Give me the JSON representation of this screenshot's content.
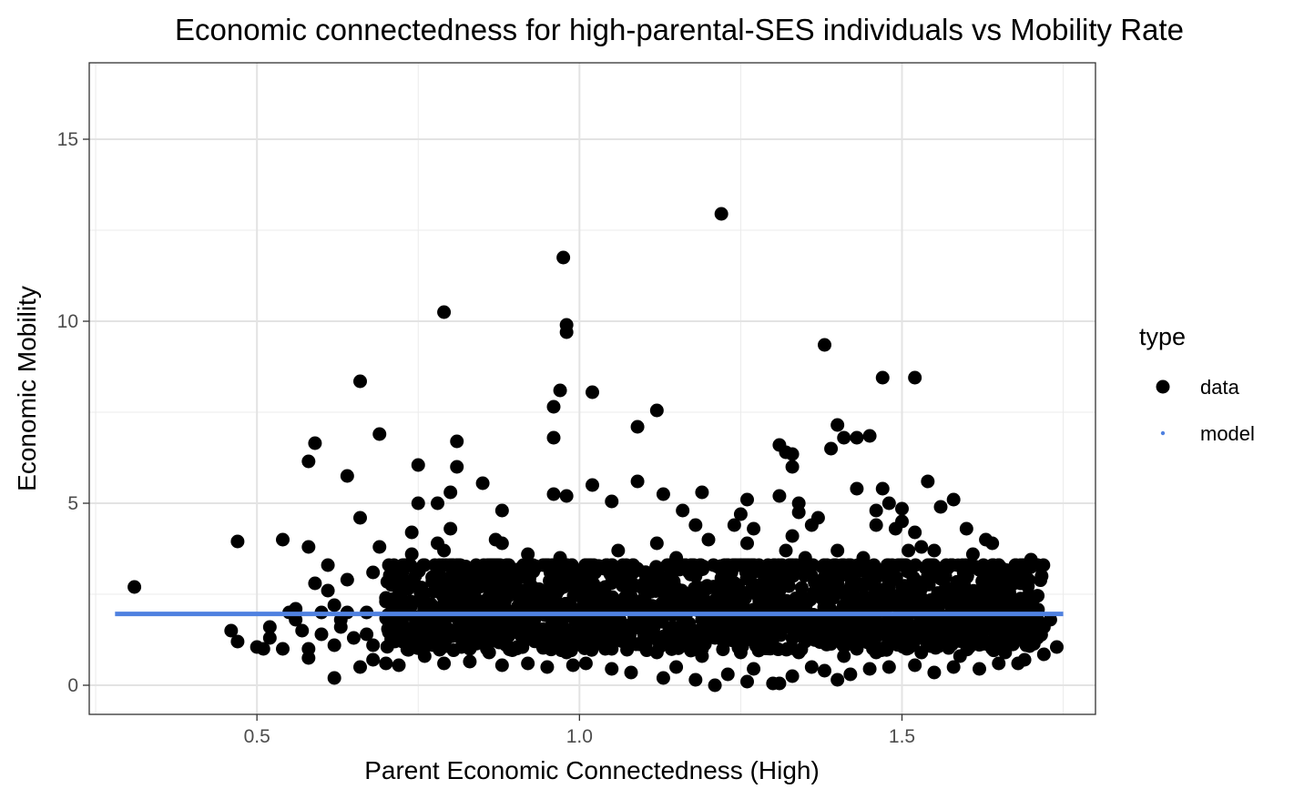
{
  "chart_data": {
    "type": "scatter",
    "title": "Economic connectedness for high-parental-SES individuals vs Mobility Rate",
    "xlabel": "Parent Economic Connectedness (High)",
    "ylabel": "Economic Mobility",
    "xlim": [
      0.24,
      1.8
    ],
    "ylim": [
      -0.8,
      17.1
    ],
    "x_ticks": [
      0.5,
      1.0,
      1.5
    ],
    "x_tick_labels": [
      "0.5",
      "1.0",
      "1.5"
    ],
    "y_ticks": [
      0,
      5,
      10,
      15
    ],
    "y_tick_labels": [
      "0",
      "5",
      "10",
      "15"
    ],
    "grid": true,
    "legend": {
      "title": "type",
      "position": "right",
      "entries": [
        {
          "label": "data",
          "color": "#000000",
          "shape": "circle"
        },
        {
          "label": "model",
          "color": "#4f81e0",
          "shape": "small-circle"
        }
      ]
    },
    "series": [
      {
        "name": "data",
        "color": "#000000",
        "points": [
          [
            0.31,
            2.7
          ],
          [
            0.46,
            1.5
          ],
          [
            0.47,
            3.95
          ],
          [
            0.47,
            1.2
          ],
          [
            0.5,
            1.05
          ],
          [
            0.51,
            1.0
          ],
          [
            0.52,
            1.3
          ],
          [
            0.52,
            1.6
          ],
          [
            0.54,
            4.0
          ],
          [
            0.54,
            1.0
          ],
          [
            0.55,
            2.0
          ],
          [
            0.56,
            1.8
          ],
          [
            0.57,
            1.5
          ],
          [
            0.58,
            3.8
          ],
          [
            0.58,
            6.15
          ],
          [
            0.58,
            1.0
          ],
          [
            0.58,
            0.75
          ],
          [
            0.59,
            6.65
          ],
          [
            0.59,
            2.8
          ],
          [
            0.6,
            1.4
          ],
          [
            0.61,
            3.3
          ],
          [
            0.61,
            2.6
          ],
          [
            0.62,
            1.1
          ],
          [
            0.62,
            0.2
          ],
          [
            0.62,
            2.2
          ],
          [
            0.63,
            1.8
          ],
          [
            0.64,
            5.75
          ],
          [
            0.64,
            2.9
          ],
          [
            0.65,
            1.3
          ],
          [
            0.66,
            8.35
          ],
          [
            0.66,
            4.6
          ],
          [
            0.66,
            0.5
          ],
          [
            0.67,
            2.0
          ],
          [
            0.68,
            3.1
          ],
          [
            0.68,
            1.1
          ],
          [
            0.69,
            6.9
          ],
          [
            0.69,
            3.8
          ],
          [
            0.7,
            2.3
          ],
          [
            0.7,
            0.6
          ],
          [
            0.71,
            1.5
          ],
          [
            0.72,
            3.0
          ],
          [
            0.73,
            2.2
          ],
          [
            0.74,
            4.2
          ],
          [
            0.74,
            3.6
          ],
          [
            0.75,
            6.05
          ],
          [
            0.75,
            5.0
          ],
          [
            0.76,
            2.0
          ],
          [
            0.77,
            1.3
          ],
          [
            0.78,
            5.0
          ],
          [
            0.78,
            3.9
          ],
          [
            0.79,
            10.25
          ],
          [
            0.79,
            3.7
          ],
          [
            0.8,
            5.3
          ],
          [
            0.8,
            4.3
          ],
          [
            0.8,
            2.4
          ],
          [
            0.81,
            6.0
          ],
          [
            0.81,
            6.7
          ],
          [
            0.82,
            2.6
          ],
          [
            0.83,
            1.0
          ],
          [
            0.84,
            2.8
          ],
          [
            0.85,
            5.55
          ],
          [
            0.86,
            1.6
          ],
          [
            0.87,
            4.0
          ],
          [
            0.88,
            3.9
          ],
          [
            0.88,
            4.8
          ],
          [
            0.89,
            2.5
          ],
          [
            0.9,
            3.1
          ],
          [
            0.91,
            1.4
          ],
          [
            0.92,
            3.6
          ],
          [
            0.93,
            2.2
          ],
          [
            0.95,
            3.3
          ],
          [
            0.96,
            7.65
          ],
          [
            0.96,
            6.8
          ],
          [
            0.96,
            5.25
          ],
          [
            0.97,
            8.1
          ],
          [
            0.97,
            3.5
          ],
          [
            0.975,
            11.75
          ],
          [
            0.98,
            9.7
          ],
          [
            0.98,
            9.9
          ],
          [
            0.98,
            5.2
          ],
          [
            0.99,
            2.9
          ],
          [
            1.0,
            1.4
          ],
          [
            1.01,
            3.3
          ],
          [
            1.02,
            5.5
          ],
          [
            1.02,
            8.05
          ],
          [
            1.03,
            2.2
          ],
          [
            1.04,
            1.0
          ],
          [
            1.05,
            5.05
          ],
          [
            1.06,
            3.7
          ],
          [
            1.07,
            2.4
          ],
          [
            1.08,
            1.2
          ],
          [
            1.09,
            7.1
          ],
          [
            1.09,
            5.6
          ],
          [
            1.1,
            2.8
          ],
          [
            1.12,
            7.55
          ],
          [
            1.12,
            3.9
          ],
          [
            1.13,
            5.25
          ],
          [
            1.14,
            2.0
          ],
          [
            1.15,
            3.5
          ],
          [
            1.16,
            4.8
          ],
          [
            1.17,
            3.1
          ],
          [
            1.18,
            4.4
          ],
          [
            1.19,
            5.3
          ],
          [
            1.2,
            4.0
          ],
          [
            1.21,
            1.3
          ],
          [
            1.22,
            12.95
          ],
          [
            1.23,
            2.6
          ],
          [
            1.24,
            4.4
          ],
          [
            1.25,
            4.7
          ],
          [
            1.26,
            5.1
          ],
          [
            1.26,
            3.9
          ],
          [
            1.27,
            4.3
          ],
          [
            1.28,
            2.0
          ],
          [
            1.29,
            1.2
          ],
          [
            1.3,
            3.0
          ],
          [
            1.31,
            6.6
          ],
          [
            1.31,
            5.2
          ],
          [
            1.32,
            6.4
          ],
          [
            1.32,
            3.7
          ],
          [
            1.33,
            6.35
          ],
          [
            1.33,
            6.0
          ],
          [
            1.33,
            4.1
          ],
          [
            1.34,
            5.0
          ],
          [
            1.34,
            4.75
          ],
          [
            1.35,
            3.5
          ],
          [
            1.36,
            4.4
          ],
          [
            1.37,
            4.6
          ],
          [
            1.38,
            3.2
          ],
          [
            1.38,
            9.35
          ],
          [
            1.39,
            6.5
          ],
          [
            1.4,
            7.15
          ],
          [
            1.4,
            3.7
          ],
          [
            1.41,
            6.8
          ],
          [
            1.42,
            2.4
          ],
          [
            1.43,
            6.8
          ],
          [
            1.43,
            5.4
          ],
          [
            1.44,
            3.5
          ],
          [
            1.45,
            6.85
          ],
          [
            1.46,
            4.8
          ],
          [
            1.46,
            4.4
          ],
          [
            1.47,
            8.45
          ],
          [
            1.47,
            5.4
          ],
          [
            1.48,
            5.0
          ],
          [
            1.49,
            4.3
          ],
          [
            1.5,
            4.85
          ],
          [
            1.5,
            4.5
          ],
          [
            1.51,
            3.7
          ],
          [
            1.52,
            8.45
          ],
          [
            1.52,
            4.2
          ],
          [
            1.53,
            3.8
          ],
          [
            1.54,
            5.6
          ],
          [
            1.55,
            3.7
          ],
          [
            1.56,
            4.9
          ],
          [
            1.57,
            3.2
          ],
          [
            1.58,
            5.1
          ],
          [
            1.59,
            2.6
          ],
          [
            1.6,
            4.3
          ],
          [
            1.61,
            3.6
          ],
          [
            1.62,
            2.0
          ],
          [
            1.63,
            4.0
          ],
          [
            1.64,
            3.9
          ],
          [
            1.65,
            3.3
          ],
          [
            1.66,
            2.4
          ],
          [
            1.67,
            1.2
          ],
          [
            1.68,
            0.6
          ],
          [
            1.7,
            3.45
          ],
          [
            1.71,
            1.8
          ],
          [
            1.73,
            1.8
          ],
          [
            1.74,
            1.05
          ],
          [
            0.88,
            0.55
          ],
          [
            0.92,
            0.6
          ],
          [
            0.95,
            0.5
          ],
          [
            0.99,
            0.55
          ],
          [
            1.01,
            0.6
          ],
          [
            1.05,
            0.45
          ],
          [
            1.08,
            0.35
          ],
          [
            1.13,
            0.2
          ],
          [
            1.15,
            0.5
          ],
          [
            1.18,
            0.15
          ],
          [
            1.21,
            0.0
          ],
          [
            1.23,
            0.3
          ],
          [
            1.26,
            0.1
          ],
          [
            1.27,
            0.45
          ],
          [
            1.3,
            0.05
          ],
          [
            1.31,
            0.05
          ],
          [
            1.33,
            0.25
          ],
          [
            1.36,
            0.5
          ],
          [
            1.38,
            0.4
          ],
          [
            1.4,
            0.15
          ],
          [
            1.42,
            0.3
          ],
          [
            1.45,
            0.45
          ],
          [
            1.48,
            0.5
          ],
          [
            1.52,
            0.55
          ],
          [
            1.55,
            0.35
          ],
          [
            1.58,
            0.5
          ],
          [
            1.62,
            0.45
          ],
          [
            1.65,
            0.6
          ],
          [
            1.69,
            0.7
          ],
          [
            1.72,
            0.85
          ],
          [
            0.83,
            0.65
          ],
          [
            0.79,
            0.6
          ],
          [
            0.76,
            0.8
          ],
          [
            0.72,
            0.55
          ],
          [
            0.68,
            0.7
          ],
          [
            0.85,
            1.2
          ],
          [
            0.9,
            1.0
          ],
          [
            0.94,
            1.3
          ],
          [
            0.97,
            1.1
          ],
          [
            1.0,
            1.5
          ],
          [
            1.03,
            1.2
          ],
          [
            1.06,
            1.6
          ],
          [
            1.1,
            1.4
          ],
          [
            1.14,
            1.1
          ],
          [
            1.17,
            1.7
          ],
          [
            1.2,
            1.3
          ],
          [
            1.24,
            1.5
          ],
          [
            1.28,
            1.1
          ],
          [
            1.32,
            1.6
          ],
          [
            1.35,
            1.2
          ],
          [
            1.39,
            1.4
          ],
          [
            1.43,
            1.0
          ],
          [
            1.47,
            1.5
          ],
          [
            1.51,
            1.3
          ],
          [
            1.56,
            1.1
          ],
          [
            1.6,
            1.4
          ],
          [
            1.64,
            1.0
          ],
          [
            1.68,
            1.3
          ],
          [
            0.74,
            1.4
          ],
          [
            0.77,
            1.9
          ],
          [
            0.81,
            1.5
          ],
          [
            0.87,
            2.1
          ],
          [
            0.93,
            1.8
          ],
          [
            0.96,
            2.3
          ],
          [
            1.02,
            1.9
          ],
          [
            1.07,
            2.2
          ],
          [
            1.11,
            1.7
          ],
          [
            1.16,
            2.4
          ],
          [
            1.19,
            1.8
          ],
          [
            1.22,
            2.5
          ],
          [
            1.25,
            1.9
          ],
          [
            1.29,
            2.3
          ],
          [
            1.33,
            1.8
          ],
          [
            1.37,
            2.6
          ],
          [
            1.41,
            1.9
          ],
          [
            1.44,
            2.2
          ],
          [
            1.49,
            1.8
          ],
          [
            1.53,
            2.4
          ],
          [
            1.57,
            1.9
          ],
          [
            1.61,
            2.2
          ],
          [
            1.66,
            1.7
          ],
          [
            0.89,
            2.9
          ],
          [
            0.99,
            3.1
          ],
          [
            1.04,
            2.7
          ],
          [
            1.09,
            3.2
          ],
          [
            1.13,
            2.8
          ],
          [
            1.18,
            3.0
          ],
          [
            1.23,
            2.7
          ],
          [
            1.27,
            3.1
          ],
          [
            1.31,
            2.6
          ],
          [
            1.36,
            3.0
          ],
          [
            1.4,
            2.8
          ],
          [
            1.45,
            3.1
          ],
          [
            1.5,
            2.7
          ],
          [
            1.54,
            3.0
          ],
          [
            1.59,
            2.8
          ],
          [
            1.63,
            2.5
          ],
          [
            0.86,
            0.9
          ],
          [
            0.91,
            1.6
          ],
          [
            0.98,
            0.9
          ],
          [
            1.05,
            1.0
          ],
          [
            1.12,
            0.9
          ],
          [
            1.19,
            0.8
          ],
          [
            1.25,
            0.9
          ],
          [
            1.34,
            0.9
          ],
          [
            1.41,
            0.8
          ],
          [
            1.46,
            0.9
          ],
          [
            1.53,
            0.9
          ],
          [
            1.59,
            0.8
          ],
          [
            1.66,
            0.9
          ],
          [
            1.71,
            1.3
          ],
          [
            1.69,
            2.2
          ],
          [
            1.72,
            1.6
          ],
          [
            0.64,
            2.0
          ],
          [
            0.7,
            2.4
          ],
          [
            0.6,
            2.0
          ],
          [
            0.56,
            2.1
          ],
          [
            0.63,
            1.6
          ],
          [
            0.67,
            1.4
          ]
        ]
      },
      {
        "name": "model",
        "color": "#4f81e0",
        "line": [
          [
            0.28,
            1.96
          ],
          [
            1.75,
            1.96
          ]
        ]
      }
    ]
  }
}
